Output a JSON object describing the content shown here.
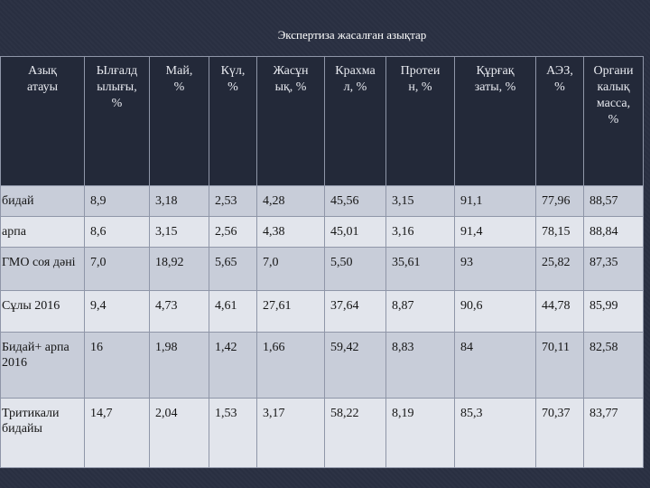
{
  "title": "Экспертиза жасалған азықтар",
  "table": {
    "headers": [
      "Азық атауы",
      "Ылғалдылығы, %",
      "Май, %",
      "Күл, %",
      "Жасұнық, %",
      "Крахмал, %",
      "Протеин, %",
      "Құрғақ заты, %",
      "АЭЗ, %",
      "Органикалық масса, %"
    ],
    "headers_display": [
      "Азық\nатауы",
      "Ылғалд\nылығы,\n%",
      "Май,\n%",
      "Күл,\n%",
      "Жасұн\nық, %",
      "Крахма\nл, %",
      "Протеи\nн, %",
      "Құрғақ\nзаты, %",
      "АЭЗ,\n%",
      "Органи\nкалық\nмасса,\n%"
    ],
    "rows": [
      [
        "бидай",
        "8,9",
        "3,18",
        "2,53",
        "4,28",
        "45,56",
        "3,15",
        "91,1",
        "77,96",
        "88,57"
      ],
      [
        "арпа",
        "8,6",
        "3,15",
        "2,56",
        "4,38",
        "45,01",
        "3,16",
        "91,4",
        "78,15",
        "88,84"
      ],
      [
        "ГМО соя дәні",
        "7,0",
        "18,92",
        "5,65",
        "7,0",
        "5,50",
        "35,61",
        "93",
        "25,82",
        "87,35"
      ],
      [
        "Сұлы 2016",
        "9,4",
        "4,73",
        "4,61",
        "27,61",
        "37,64",
        "8,87",
        "90,6",
        "44,78",
        "85,99"
      ],
      [
        "Бидай+ арпа 2016",
        "16",
        "1,98",
        "1,42",
        "1,66",
        "59,42",
        "8,83",
        "84",
        "70,11",
        "82,58"
      ],
      [
        "Тритикали бидайы",
        "14,7",
        "2,04",
        "1,53",
        "3,17",
        "58,22",
        "8,19",
        "85,3",
        "70,37",
        "83,77"
      ]
    ]
  }
}
